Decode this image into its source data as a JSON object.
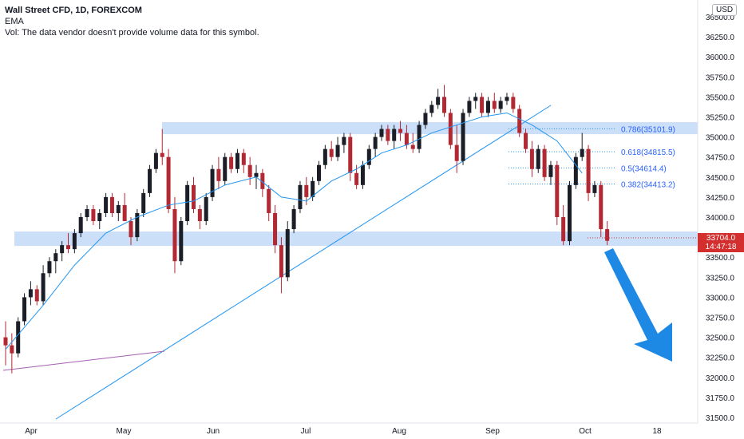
{
  "legend": {
    "symbol": "Wall Street CFD, 1D, FOREXCOM",
    "indicator": "EMA",
    "volume_note": "Vol: The data vendor doesn't provide volume data for this symbol."
  },
  "currency": "USD",
  "last_price": {
    "value": "33704.0",
    "countdown": "14:47:18"
  },
  "colors": {
    "up": "#1b1e27",
    "down": "#b22833",
    "ema": "#2196f3",
    "zone": "#bbd4f5",
    "trend": "#2196f3",
    "support_line": "#a45fb0",
    "arrow": "#1e88e5",
    "badge": "#d32f2f"
  },
  "chart_data": {
    "type": "candlestick",
    "title": "Wall Street CFD, 1D, FOREXCOM",
    "y_axis": {
      "ylim": [
        31500,
        36600
      ],
      "position": "right",
      "ticks": [
        "31500.0",
        "31750.0",
        "32000.0",
        "32250.0",
        "32500.0",
        "32750.0",
        "33000.0",
        "33250.0",
        "33500.0",
        "33750.0",
        "34000.0",
        "34250.0",
        "34500.0",
        "34750.0",
        "35000.0",
        "35250.0",
        "35500.0",
        "35750.0",
        "36000.0",
        "36250.0",
        "36500.0"
      ]
    },
    "x_axis": {
      "ticks": [
        "Apr",
        "May",
        "Jun",
        "Jul",
        "Aug",
        "Sep",
        "Oct",
        "18"
      ]
    },
    "grid": false,
    "zones": [
      {
        "from": 35035,
        "to": 35185
      },
      {
        "from": 33640,
        "to": 33820
      }
    ],
    "fibonacci": [
      {
        "label": "0.786(35101.9)",
        "value": 35101.9
      },
      {
        "label": "0.618(34815.5)",
        "value": 34815.5
      },
      {
        "label": "0.5(34614.4)",
        "value": 34614.4
      },
      {
        "label": "0.382(34413.2)",
        "value": 34413.2
      }
    ],
    "candles": [
      [
        32500,
        32700,
        32150,
        32400
      ],
      [
        32400,
        32550,
        32050,
        32300
      ],
      [
        32300,
        32750,
        32250,
        32700
      ],
      [
        32700,
        33050,
        32650,
        33000
      ],
      [
        33000,
        33200,
        32900,
        33100
      ],
      [
        33100,
        33150,
        32900,
        32950
      ],
      [
        32950,
        33400,
        32900,
        33300
      ],
      [
        33300,
        33500,
        33250,
        33450
      ],
      [
        33450,
        33600,
        33300,
        33550
      ],
      [
        33550,
        33700,
        33450,
        33650
      ],
      [
        33650,
        33800,
        33550,
        33600
      ],
      [
        33600,
        33850,
        33550,
        33800
      ],
      [
        33800,
        34050,
        33750,
        34000
      ],
      [
        34000,
        34150,
        33950,
        34100
      ],
      [
        34100,
        34150,
        33900,
        33950
      ],
      [
        33950,
        34100,
        33850,
        34050
      ],
      [
        34050,
        34300,
        34000,
        34250
      ],
      [
        34250,
        34300,
        34000,
        34050
      ],
      [
        34050,
        34200,
        33950,
        34150
      ],
      [
        34150,
        34300,
        34000,
        33950
      ],
      [
        33950,
        34000,
        33650,
        33750
      ],
      [
        33750,
        34100,
        33700,
        34050
      ],
      [
        34050,
        34350,
        34000,
        34300
      ],
      [
        34300,
        34650,
        34250,
        34600
      ],
      [
        34600,
        34850,
        34550,
        34800
      ],
      [
        34800,
        35100,
        34650,
        34750
      ],
      [
        34750,
        34850,
        34050,
        34100
      ],
      [
        34100,
        34250,
        33300,
        33450
      ],
      [
        33450,
        34000,
        33400,
        33950
      ],
      [
        33950,
        34450,
        33900,
        34400
      ],
      [
        34400,
        34500,
        34050,
        34100
      ],
      [
        34100,
        34150,
        33850,
        33950
      ],
      [
        33950,
        34300,
        33900,
        34250
      ],
      [
        34250,
        34650,
        34200,
        34600
      ],
      [
        34600,
        34750,
        34350,
        34450
      ],
      [
        34450,
        34800,
        34400,
        34750
      ],
      [
        34750,
        34800,
        34550,
        34600
      ],
      [
        34600,
        34850,
        34550,
        34800
      ],
      [
        34800,
        34850,
        34550,
        34650
      ],
      [
        34650,
        34750,
        34400,
        34500
      ],
      [
        34500,
        34650,
        34350,
        34550
      ],
      [
        34550,
        34600,
        34250,
        34350
      ],
      [
        34350,
        34400,
        33950,
        34050
      ],
      [
        34050,
        34150,
        33550,
        33650
      ],
      [
        33650,
        33750,
        33050,
        33250
      ],
      [
        33250,
        33950,
        33200,
        33850
      ],
      [
        33850,
        34150,
        33800,
        34100
      ],
      [
        34100,
        34450,
        34050,
        34400
      ],
      [
        34400,
        34500,
        34150,
        34250
      ],
      [
        34250,
        34500,
        34200,
        34450
      ],
      [
        34450,
        34700,
        34400,
        34650
      ],
      [
        34650,
        34900,
        34600,
        34850
      ],
      [
        34850,
        34950,
        34700,
        34750
      ],
      [
        34750,
        35000,
        34700,
        34900
      ],
      [
        34900,
        35050,
        34800,
        35000
      ],
      [
        35000,
        35050,
        34450,
        34550
      ],
      [
        34550,
        34650,
        34350,
        34400
      ],
      [
        34400,
        34700,
        34350,
        34650
      ],
      [
        34650,
        34900,
        34600,
        34850
      ],
      [
        34850,
        35050,
        34750,
        35000
      ],
      [
        35000,
        35150,
        34950,
        35100
      ],
      [
        35100,
        35150,
        34900,
        34950
      ],
      [
        34950,
        35150,
        34850,
        35100
      ],
      [
        35100,
        35200,
        34950,
        35050
      ],
      [
        35050,
        35150,
        34850,
        34900
      ],
      [
        34900,
        35050,
        34800,
        34850
      ],
      [
        34850,
        35200,
        34800,
        35150
      ],
      [
        35150,
        35350,
        35100,
        35300
      ],
      [
        35300,
        35450,
        35250,
        35400
      ],
      [
        35400,
        35600,
        35350,
        35500
      ],
      [
        35500,
        35650,
        35250,
        35300
      ],
      [
        35300,
        35350,
        34850,
        34900
      ],
      [
        34900,
        35150,
        34550,
        34700
      ],
      [
        34700,
        35350,
        34650,
        35300
      ],
      [
        35300,
        35500,
        35250,
        35450
      ],
      [
        35450,
        35550,
        35350,
        35500
      ],
      [
        35500,
        35550,
        35250,
        35300
      ],
      [
        35300,
        35500,
        35250,
        35450
      ],
      [
        35450,
        35550,
        35300,
        35350
      ],
      [
        35350,
        35500,
        35300,
        35450
      ],
      [
        35450,
        35550,
        35400,
        35500
      ],
      [
        35500,
        35550,
        35300,
        35350
      ],
      [
        35350,
        35400,
        35000,
        35050
      ],
      [
        35050,
        35100,
        34800,
        34850
      ],
      [
        34850,
        34950,
        34500,
        34600
      ],
      [
        34600,
        34900,
        34550,
        34850
      ],
      [
        34850,
        34900,
        34450,
        34500
      ],
      [
        34500,
        34700,
        34400,
        34650
      ],
      [
        34650,
        34700,
        33900,
        34000
      ],
      [
        34000,
        34150,
        33650,
        33700
      ],
      [
        33700,
        34450,
        33650,
        34400
      ],
      [
        34400,
        34800,
        34350,
        34750
      ],
      [
        34750,
        35050,
        34700,
        34850
      ],
      [
        34850,
        34900,
        34200,
        34300
      ],
      [
        34300,
        34450,
        34250,
        34400
      ],
      [
        34400,
        34450,
        33750,
        33850
      ],
      [
        33850,
        33950,
        33650,
        33704
      ]
    ],
    "ema": [
      [
        0,
        32350
      ],
      [
        6,
        32900
      ],
      [
        11,
        33400
      ],
      [
        16,
        33800
      ],
      [
        21,
        34000
      ],
      [
        26,
        34150
      ],
      [
        30,
        34200
      ],
      [
        35,
        34400
      ],
      [
        40,
        34500
      ],
      [
        44,
        34250
      ],
      [
        48,
        34200
      ],
      [
        52,
        34450
      ],
      [
        56,
        34600
      ],
      [
        60,
        34800
      ],
      [
        64,
        34900
      ],
      [
        68,
        35050
      ],
      [
        72,
        35150
      ],
      [
        76,
        35250
      ],
      [
        80,
        35300
      ],
      [
        84,
        35150
      ],
      [
        88,
        34950
      ],
      [
        92,
        34550
      ]
    ]
  }
}
